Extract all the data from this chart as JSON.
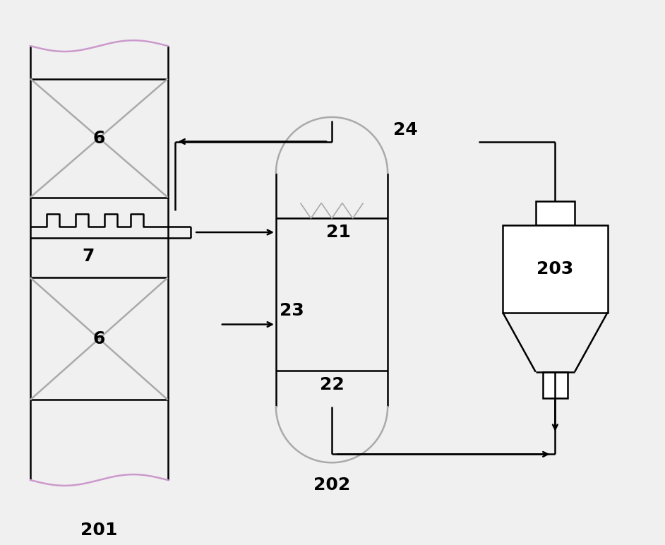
{
  "bg_color": "#f0f0f0",
  "line_color": "#000000",
  "line_color_gray": "#aaaaaa",
  "line_color_purple": "#cc99cc",
  "fig_width": 9.42,
  "fig_height": 7.72
}
